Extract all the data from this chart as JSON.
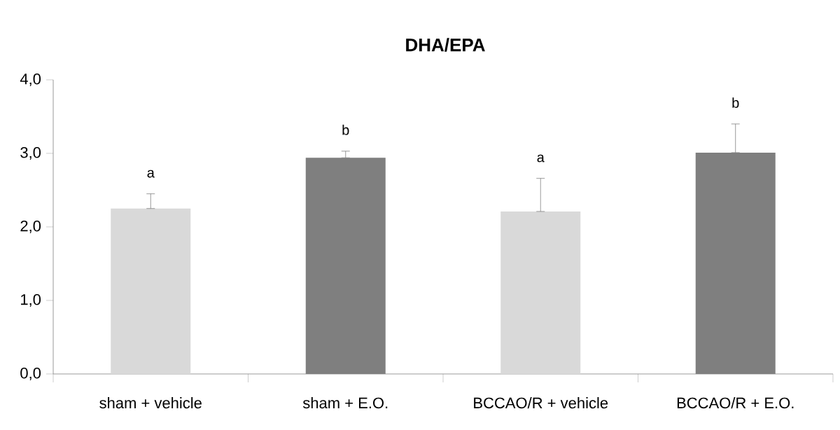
{
  "chart_data": {
    "type": "bar",
    "title": "DHA/EPA",
    "categories": [
      "sham + vehicle",
      "sham + E.O.",
      "BCCAO/R + vehicle",
      "BCCAO/R + E.O."
    ],
    "values": [
      2.25,
      2.94,
      2.21,
      3.01
    ],
    "colors": [
      "#d9d9d9",
      "#7f7f7f",
      "#d9d9d9",
      "#7f7f7f"
    ],
    "errors": [
      [
        2.25,
        2.45
      ],
      [
        2.94,
        3.03
      ],
      [
        2.21,
        2.66
      ],
      [
        3.01,
        3.4
      ]
    ],
    "ylim": [
      0,
      4
    ],
    "yticks": [
      {
        "value": 0,
        "label": "0,0"
      },
      {
        "value": 1,
        "label": "1,0"
      },
      {
        "value": 2,
        "label": "2,0"
      },
      {
        "value": 3,
        "label": "3,0"
      },
      {
        "value": 4,
        "label": "4,0"
      }
    ],
    "annotations": [
      "a",
      "b",
      "a",
      "b"
    ],
    "grid": false
  }
}
